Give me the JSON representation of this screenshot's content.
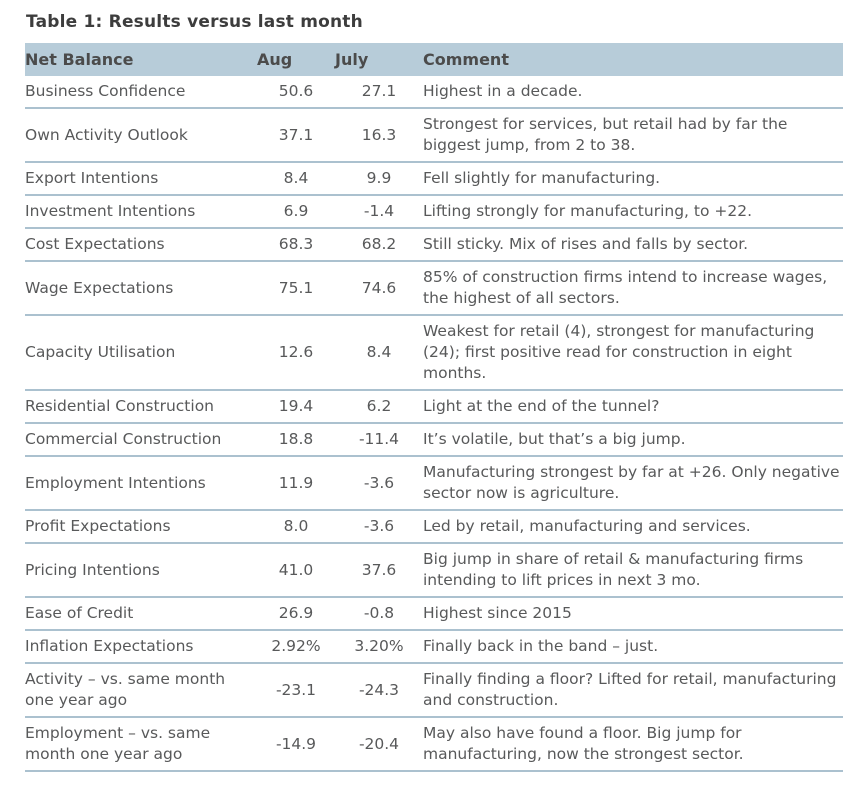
{
  "title": "Table 1: Results versus last month",
  "colors": {
    "header_bg": "#b7ccd9",
    "row_divider": "#abc1cf",
    "title_text": "#3d3d3d",
    "header_text": "#4b4b4b",
    "body_text": "#58595a"
  },
  "table": {
    "columns": [
      "Net Balance",
      "Aug",
      "July",
      "Comment"
    ],
    "rows": [
      {
        "name": "Business Confidence",
        "aug": "50.6",
        "july": "27.1",
        "comment": "Highest in a decade."
      },
      {
        "name": "Own Activity Outlook",
        "aug": "37.1",
        "july": "16.3",
        "comment": "Strongest for services, but retail had by far the biggest jump, from 2 to 38."
      },
      {
        "name": "Export Intentions",
        "aug": "8.4",
        "july": "9.9",
        "comment": "Fell slightly for manufacturing."
      },
      {
        "name": "Investment Intentions",
        "aug": "6.9",
        "july": "-1.4",
        "comment": "Lifting strongly for manufacturing, to +22."
      },
      {
        "name": "Cost Expectations",
        "aug": "68.3",
        "july": "68.2",
        "comment": "Still sticky. Mix of rises and falls by sector."
      },
      {
        "name": "Wage Expectations",
        "aug": "75.1",
        "july": "74.6",
        "comment": "85% of construction firms intend to increase wages, the highest of all sectors."
      },
      {
        "name": "Capacity Utilisation",
        "aug": "12.6",
        "july": "8.4",
        "comment": "Weakest for retail (4), strongest for manufacturing (24); first positive read for construction in eight months."
      },
      {
        "name": "Residential Construction",
        "aug": "19.4",
        "july": "6.2",
        "comment": "Light at the end of the tunnel?"
      },
      {
        "name": "Commercial Construction",
        "aug": "18.8",
        "july": "-11.4",
        "comment": "It’s volatile, but that’s a big jump."
      },
      {
        "name": "Employment Intentions",
        "aug": "11.9",
        "july": "-3.6",
        "comment": "Manufacturing strongest by far at +26. Only negative sector now is agriculture."
      },
      {
        "name": "Profit Expectations",
        "aug": "8.0",
        "july": "-3.6",
        "comment": "Led by retail, manufacturing and services."
      },
      {
        "name": "Pricing Intentions",
        "aug": "41.0",
        "july": "37.6",
        "comment": "Big jump in share of retail & manufacturing firms intending to lift prices in next 3 mo."
      },
      {
        "name": "Ease of Credit",
        "aug": "26.9",
        "july": "-0.8",
        "comment": "Highest since 2015"
      },
      {
        "name": "Inflation Expectations",
        "aug": "2.92%",
        "july": "3.20%",
        "comment": "Finally back in the band – just."
      },
      {
        "name": "Activity – vs. same month one year ago",
        "aug": "-23.1",
        "july": "-24.3",
        "comment": "Finally finding a floor? Lifted for retail, manufacturing and construction."
      },
      {
        "name": "Employment – vs. same month one year ago",
        "aug": "-14.9",
        "july": "-20.4",
        "comment": "May also have found a floor. Big jump for manufacturing, now the strongest sector."
      }
    ]
  }
}
